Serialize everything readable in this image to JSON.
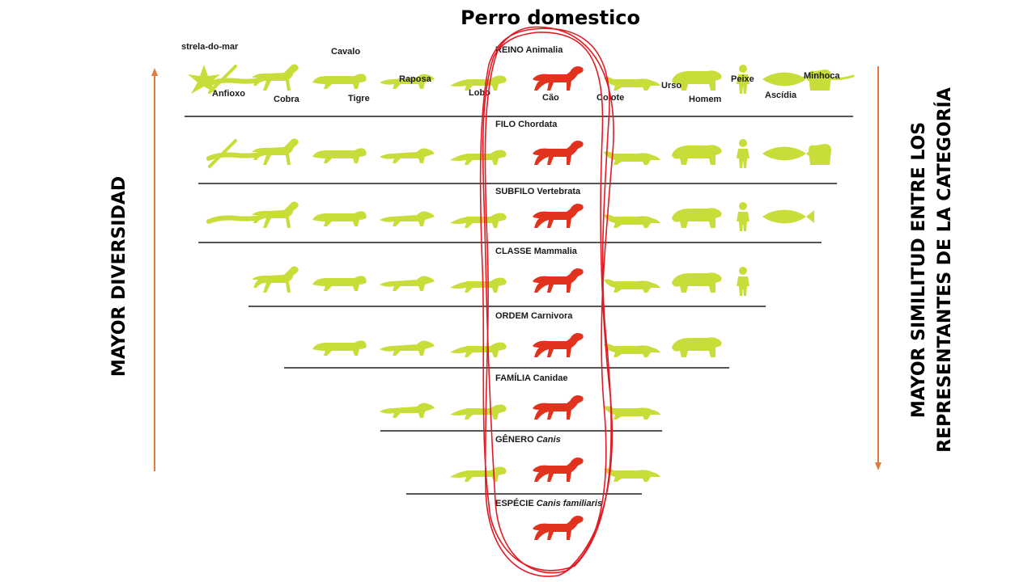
{
  "title": "Perro domestico",
  "left_axis_label": "MAYOR DIVERSIDAD",
  "right_axis_label": [
    "MAYOR SIMILITUD ENTRE LOS",
    "REPRESENTANTES DE LA CATEGORÍA"
  ],
  "colors": {
    "arrow": "#e07b39",
    "animal": "#c8dd3a",
    "highlight": "#e0321c",
    "ring": "#e01b24",
    "divider": "#555555"
  },
  "ranks": [
    {
      "rank": "REINO",
      "taxon": "Animalia",
      "taxon_italic": false
    },
    {
      "rank": "FILO",
      "taxon": "Chordata",
      "taxon_italic": false
    },
    {
      "rank": "SUBFILO",
      "taxon": "Vertebrata",
      "taxon_italic": false
    },
    {
      "rank": "CLASSE",
      "taxon": "Mammalia",
      "taxon_italic": false
    },
    {
      "rank": "ORDEM",
      "taxon": "Carnivora",
      "taxon_italic": false
    },
    {
      "rank": "FAMÍLIA",
      "taxon": "Canidae",
      "taxon_italic": false
    },
    {
      "rank": "GÊNERO",
      "taxon": "Canis",
      "taxon_italic": true
    },
    {
      "rank": "ESPÉCIE",
      "taxon": "Canis familiaris",
      "taxon_italic": true
    }
  ],
  "animal_labels": [
    "strela-do-mar",
    "Cavalo",
    "Raposa",
    "Anfioxo",
    "Cobra",
    "Tigre",
    "Lobo",
    "Cão",
    "Coiote",
    "Urso",
    "Homem",
    "Peixe",
    "Ascídia",
    "Minhoca"
  ],
  "rows": [
    [
      "starfish",
      "amphioxus",
      "snake",
      "horse",
      "tiger",
      "fox",
      "wolf",
      "dog",
      "coyote",
      "bear",
      "human",
      "fish",
      "ascidian",
      "worm"
    ],
    [
      "amphioxus",
      "snake",
      "horse",
      "tiger",
      "fox",
      "wolf",
      "dog",
      "coyote",
      "bear",
      "human",
      "fish",
      "ascidian"
    ],
    [
      "snake",
      "horse",
      "tiger",
      "fox",
      "wolf",
      "dog",
      "coyote",
      "bear",
      "human",
      "fish"
    ],
    [
      "horse",
      "tiger",
      "fox",
      "wolf",
      "dog",
      "coyote",
      "bear",
      "human"
    ],
    [
      "tiger",
      "fox",
      "wolf",
      "dog",
      "coyote",
      "bear"
    ],
    [
      "fox",
      "wolf",
      "dog",
      "coyote"
    ],
    [
      "wolf",
      "dog",
      "coyote"
    ],
    [
      "dog"
    ]
  ]
}
